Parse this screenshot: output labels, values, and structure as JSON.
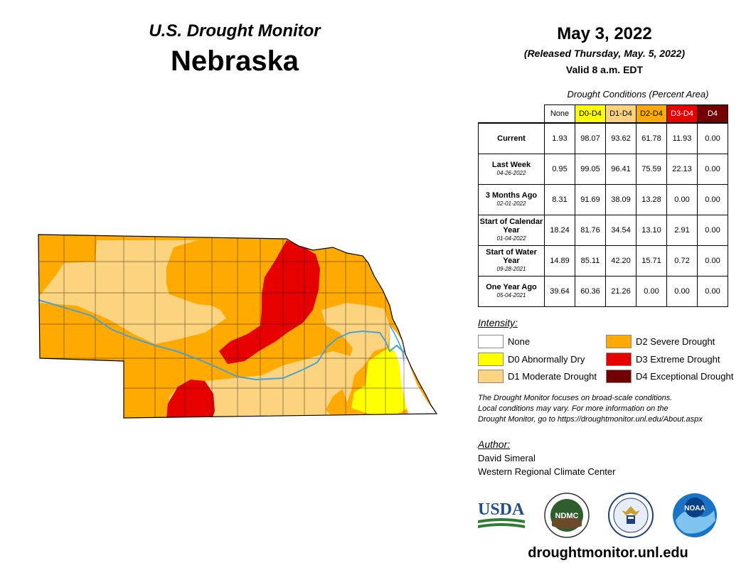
{
  "header": {
    "monitor_title": "U.S. Drought Monitor",
    "state": "Nebraska",
    "map_date": "May 3, 2022",
    "released": "(Released Thursday, May. 5, 2022)",
    "valid": "Valid 8 a.m. EDT"
  },
  "table": {
    "caption": "Drought Conditions (Percent Area)",
    "columns": [
      "None",
      "D0-D4",
      "D1-D4",
      "D2-D4",
      "D3-D4",
      "D4"
    ],
    "rows": [
      {
        "label": "Current",
        "date": "",
        "values": [
          "1.93",
          "98.07",
          "93.62",
          "61.78",
          "11.93",
          "0.00"
        ]
      },
      {
        "label": "Last Week",
        "date": "04-26-2022",
        "values": [
          "0.95",
          "99.05",
          "96.41",
          "75.59",
          "22.13",
          "0.00"
        ]
      },
      {
        "label": "3 Months Ago",
        "date": "02-01-2022",
        "values": [
          "8.31",
          "91.69",
          "38.09",
          "13.28",
          "0.00",
          "0.00"
        ]
      },
      {
        "label": "Start of Calendar Year",
        "date": "01-04-2022",
        "values": [
          "18.24",
          "81.76",
          "34.54",
          "13.10",
          "2.91",
          "0.00"
        ]
      },
      {
        "label": "Start of Water Year",
        "date": "09-28-2021",
        "values": [
          "14.89",
          "85.11",
          "42.20",
          "15.71",
          "0.72",
          "0.00"
        ]
      },
      {
        "label": "One Year Ago",
        "date": "05-04-2021",
        "values": [
          "39.64",
          "60.36",
          "21.26",
          "0.00",
          "0.00",
          "0.00"
        ]
      }
    ]
  },
  "legend": {
    "title": "Intensity:",
    "items": [
      {
        "label": "None",
        "color": "#ffffff"
      },
      {
        "label": "D0 Abnormally Dry",
        "color": "#ffff00"
      },
      {
        "label": "D1 Moderate Drought",
        "color": "#fcd37f"
      },
      {
        "label": "D2 Severe Drought",
        "color": "#ffaa00"
      },
      {
        "label": "D3 Extreme Drought",
        "color": "#e60000"
      },
      {
        "label": "D4 Exceptional Drought",
        "color": "#730000"
      }
    ]
  },
  "note": {
    "line1": "The Drought Monitor focuses on broad-scale conditions.",
    "line2": "Local conditions may vary. For more information on the",
    "line3": "Drought Monitor, go to https://droughtmonitor.unl.edu/About.aspx"
  },
  "author": {
    "title": "Author:",
    "name": "David Simeral",
    "org": "Western Regional Climate Center"
  },
  "logos": {
    "usda": "USDA",
    "ndmc": "NDMC",
    "noaa": "NOAA",
    "commerce_icon": "eagle-seal-icon"
  },
  "url": "droughtmonitor.unl.edu",
  "colors": {
    "none": "#ffffff",
    "d0": "#ffff00",
    "d1": "#fcd37f",
    "d2": "#ffaa00",
    "d3": "#e60000",
    "d4": "#730000",
    "river": "#4a9fd6"
  }
}
